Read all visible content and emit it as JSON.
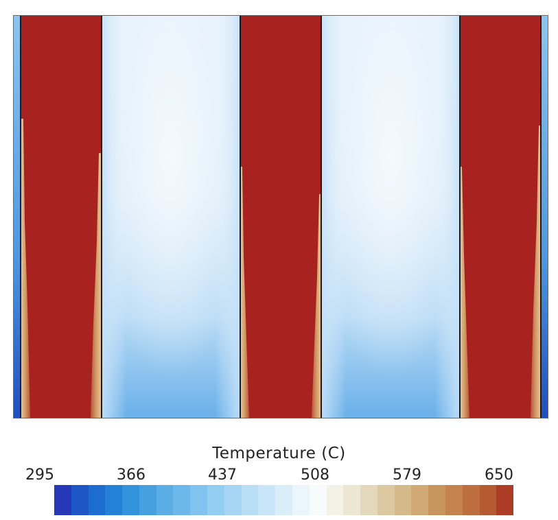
{
  "legend": {
    "title": "Temperature (C)",
    "ticks": [
      "295",
      "366",
      "437",
      "508",
      "579",
      "650"
    ]
  },
  "colors": {
    "hot": "#a82320",
    "cool_light": "#e8f2fb",
    "cool_dark": "#2468c8",
    "colorbar": [
      "#2638b8",
      "#1f56c6",
      "#1d6ccf",
      "#2482d6",
      "#3293dc",
      "#46a0e0",
      "#5aadE5",
      "#6db8ea",
      "#80c3ee",
      "#93cdf1",
      "#a6d6f4",
      "#b8def6",
      "#c9e6f8",
      "#daeefa",
      "#ebf5fc",
      "#f8fbfc",
      "#f4f2e6",
      "#ece6d2",
      "#e4d8bb",
      "#dcc9a2",
      "#d5b98a",
      "#cfa873",
      "#c9955f",
      "#c4824d",
      "#be6e3e",
      "#b65a33",
      "#ac3c25"
    ]
  }
}
